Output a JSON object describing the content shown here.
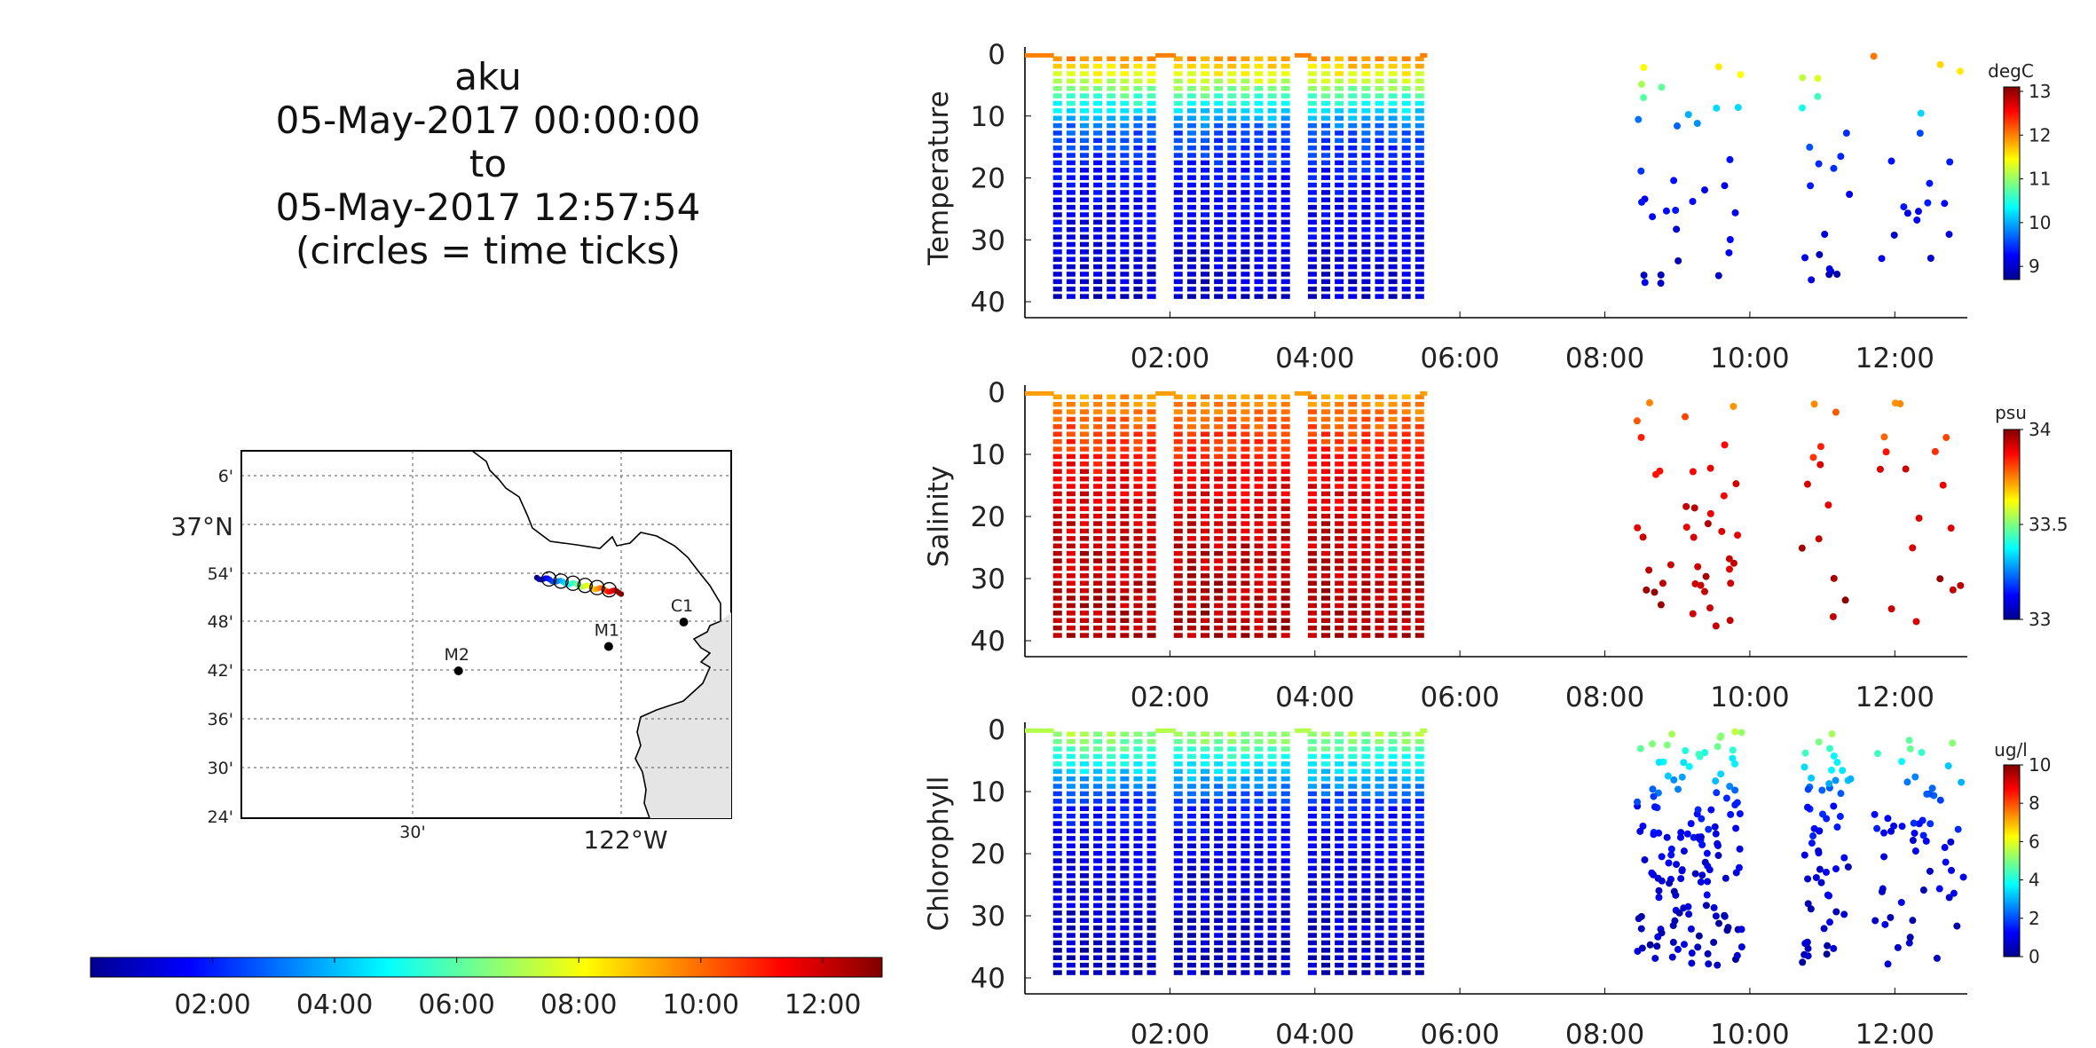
{
  "title": {
    "line1": "aku",
    "line2": "05-May-2017 00:00:00",
    "line3": "to",
    "line4": "05-May-2017 12:57:54",
    "line5": "(circles = time ticks)"
  },
  "map": {
    "lat_labels": [
      "6'",
      "37°N",
      "54'",
      "48'",
      "42'",
      "36'",
      "30'",
      "24'"
    ],
    "lon_labels": [
      "30'",
      "122°W"
    ],
    "stations": [
      {
        "name": "M2",
        "lon": -122.39,
        "lat": 36.7
      },
      {
        "name": "M1",
        "lon": -122.03,
        "lat": 36.75
      },
      {
        "name": "C1",
        "lon": -121.85,
        "lat": 36.8
      }
    ],
    "track_colors": [
      "#00008f",
      "#0040ff",
      "#00c0ff",
      "#60ff9f",
      "#ffdf00",
      "#ff8000",
      "#ff2000",
      "#8f0000"
    ]
  },
  "time_colorbar": {
    "tick_labels": [
      "02:00",
      "04:00",
      "06:00",
      "08:00",
      "10:00",
      "12:00"
    ],
    "range_hours": [
      0,
      12.97
    ]
  },
  "chart_data": [
    {
      "type": "scatter",
      "ylabel": "Temperature",
      "colorbar_label": "degC",
      "colorbar_ticks": [
        "9",
        "10",
        "11",
        "12",
        "13"
      ],
      "clim": [
        8.7,
        13.1
      ],
      "x_ticks": [
        "02:00",
        "04:00",
        "06:00",
        "08:00",
        "10:00",
        "12:00"
      ],
      "y_ticks": [
        "0",
        "10",
        "20",
        "30",
        "40"
      ],
      "ylim": [
        0,
        40
      ],
      "y_reversed": true,
      "surface_value": 12.0,
      "deep_value": 9.0,
      "mid_value": 9.6
    },
    {
      "type": "scatter",
      "ylabel": "Salinity",
      "colorbar_label": "psu",
      "colorbar_ticks": [
        "33",
        "33.5",
        "34"
      ],
      "clim": [
        33.0,
        34.0
      ],
      "x_ticks": [
        "02:00",
        "04:00",
        "06:00",
        "08:00",
        "10:00",
        "12:00"
      ],
      "y_ticks": [
        "0",
        "10",
        "20",
        "30",
        "40"
      ],
      "ylim": [
        0,
        40
      ],
      "y_reversed": true,
      "surface_value": 33.72,
      "deep_value": 33.96,
      "mid_value": 33.88
    },
    {
      "type": "scatter",
      "ylabel": "Chlorophyll",
      "colorbar_label": "ug/l",
      "colorbar_ticks": [
        "0",
        "2",
        "4",
        "6",
        "8",
        "10"
      ],
      "clim": [
        0,
        10
      ],
      "x_ticks": [
        "02:00",
        "04:00",
        "06:00",
        "08:00",
        "10:00",
        "12:00"
      ],
      "y_ticks": [
        "0",
        "10",
        "20",
        "30",
        "40"
      ],
      "ylim": [
        0,
        40
      ],
      "y_reversed": true,
      "surface_value": 5.5,
      "deep_value": 0.5,
      "mid_value": 1.5
    }
  ]
}
